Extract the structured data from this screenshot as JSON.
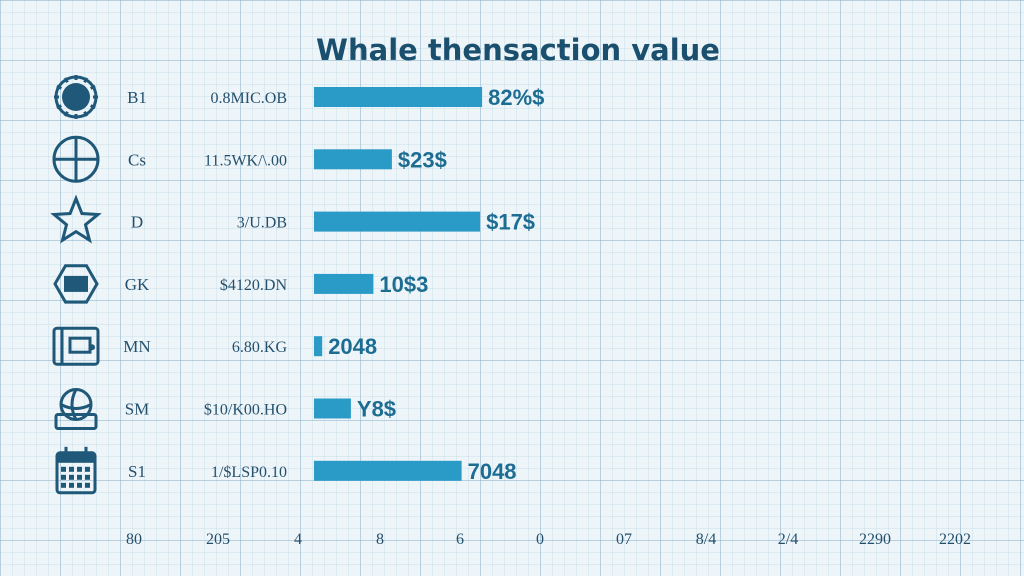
{
  "chart_data": {
    "type": "bar",
    "orientation": "horizontal",
    "title": "Whale thensaction value",
    "rows": [
      {
        "icon": "coin-icon",
        "category": "B1",
        "amount": "0.8MIC.OB",
        "value": 82,
        "label": "82%$"
      },
      {
        "icon": "crosshair-icon",
        "category": "Cs",
        "amount": "11.5WK/\\.00",
        "value": 38,
        "label": "$23$"
      },
      {
        "icon": "star-icon",
        "category": "D",
        "amount": "3/U.DB",
        "value": 81,
        "label": "$17$"
      },
      {
        "icon": "hexagon-token-icon",
        "category": "GK",
        "amount": "$4120.DN",
        "value": 29,
        "label": "10$3"
      },
      {
        "icon": "wallet-icon",
        "category": "MN",
        "amount": "6.80.KG",
        "value": 4,
        "label": "2048"
      },
      {
        "icon": "globe-basket-icon",
        "category": "SM",
        "amount": "$10/K00.HO",
        "value": 18,
        "label": "Y8$"
      },
      {
        "icon": "calendar-icon",
        "category": "S1",
        "amount": "1/$LSP0.10",
        "value": 72,
        "label": "7048"
      }
    ],
    "x_ticks": [
      "80",
      "205",
      "4",
      "8",
      "6",
      "0",
      "07",
      "8/4",
      "2/4",
      "2290",
      "2202"
    ],
    "xlim": [
      0,
      100
    ],
    "grid": true
  }
}
